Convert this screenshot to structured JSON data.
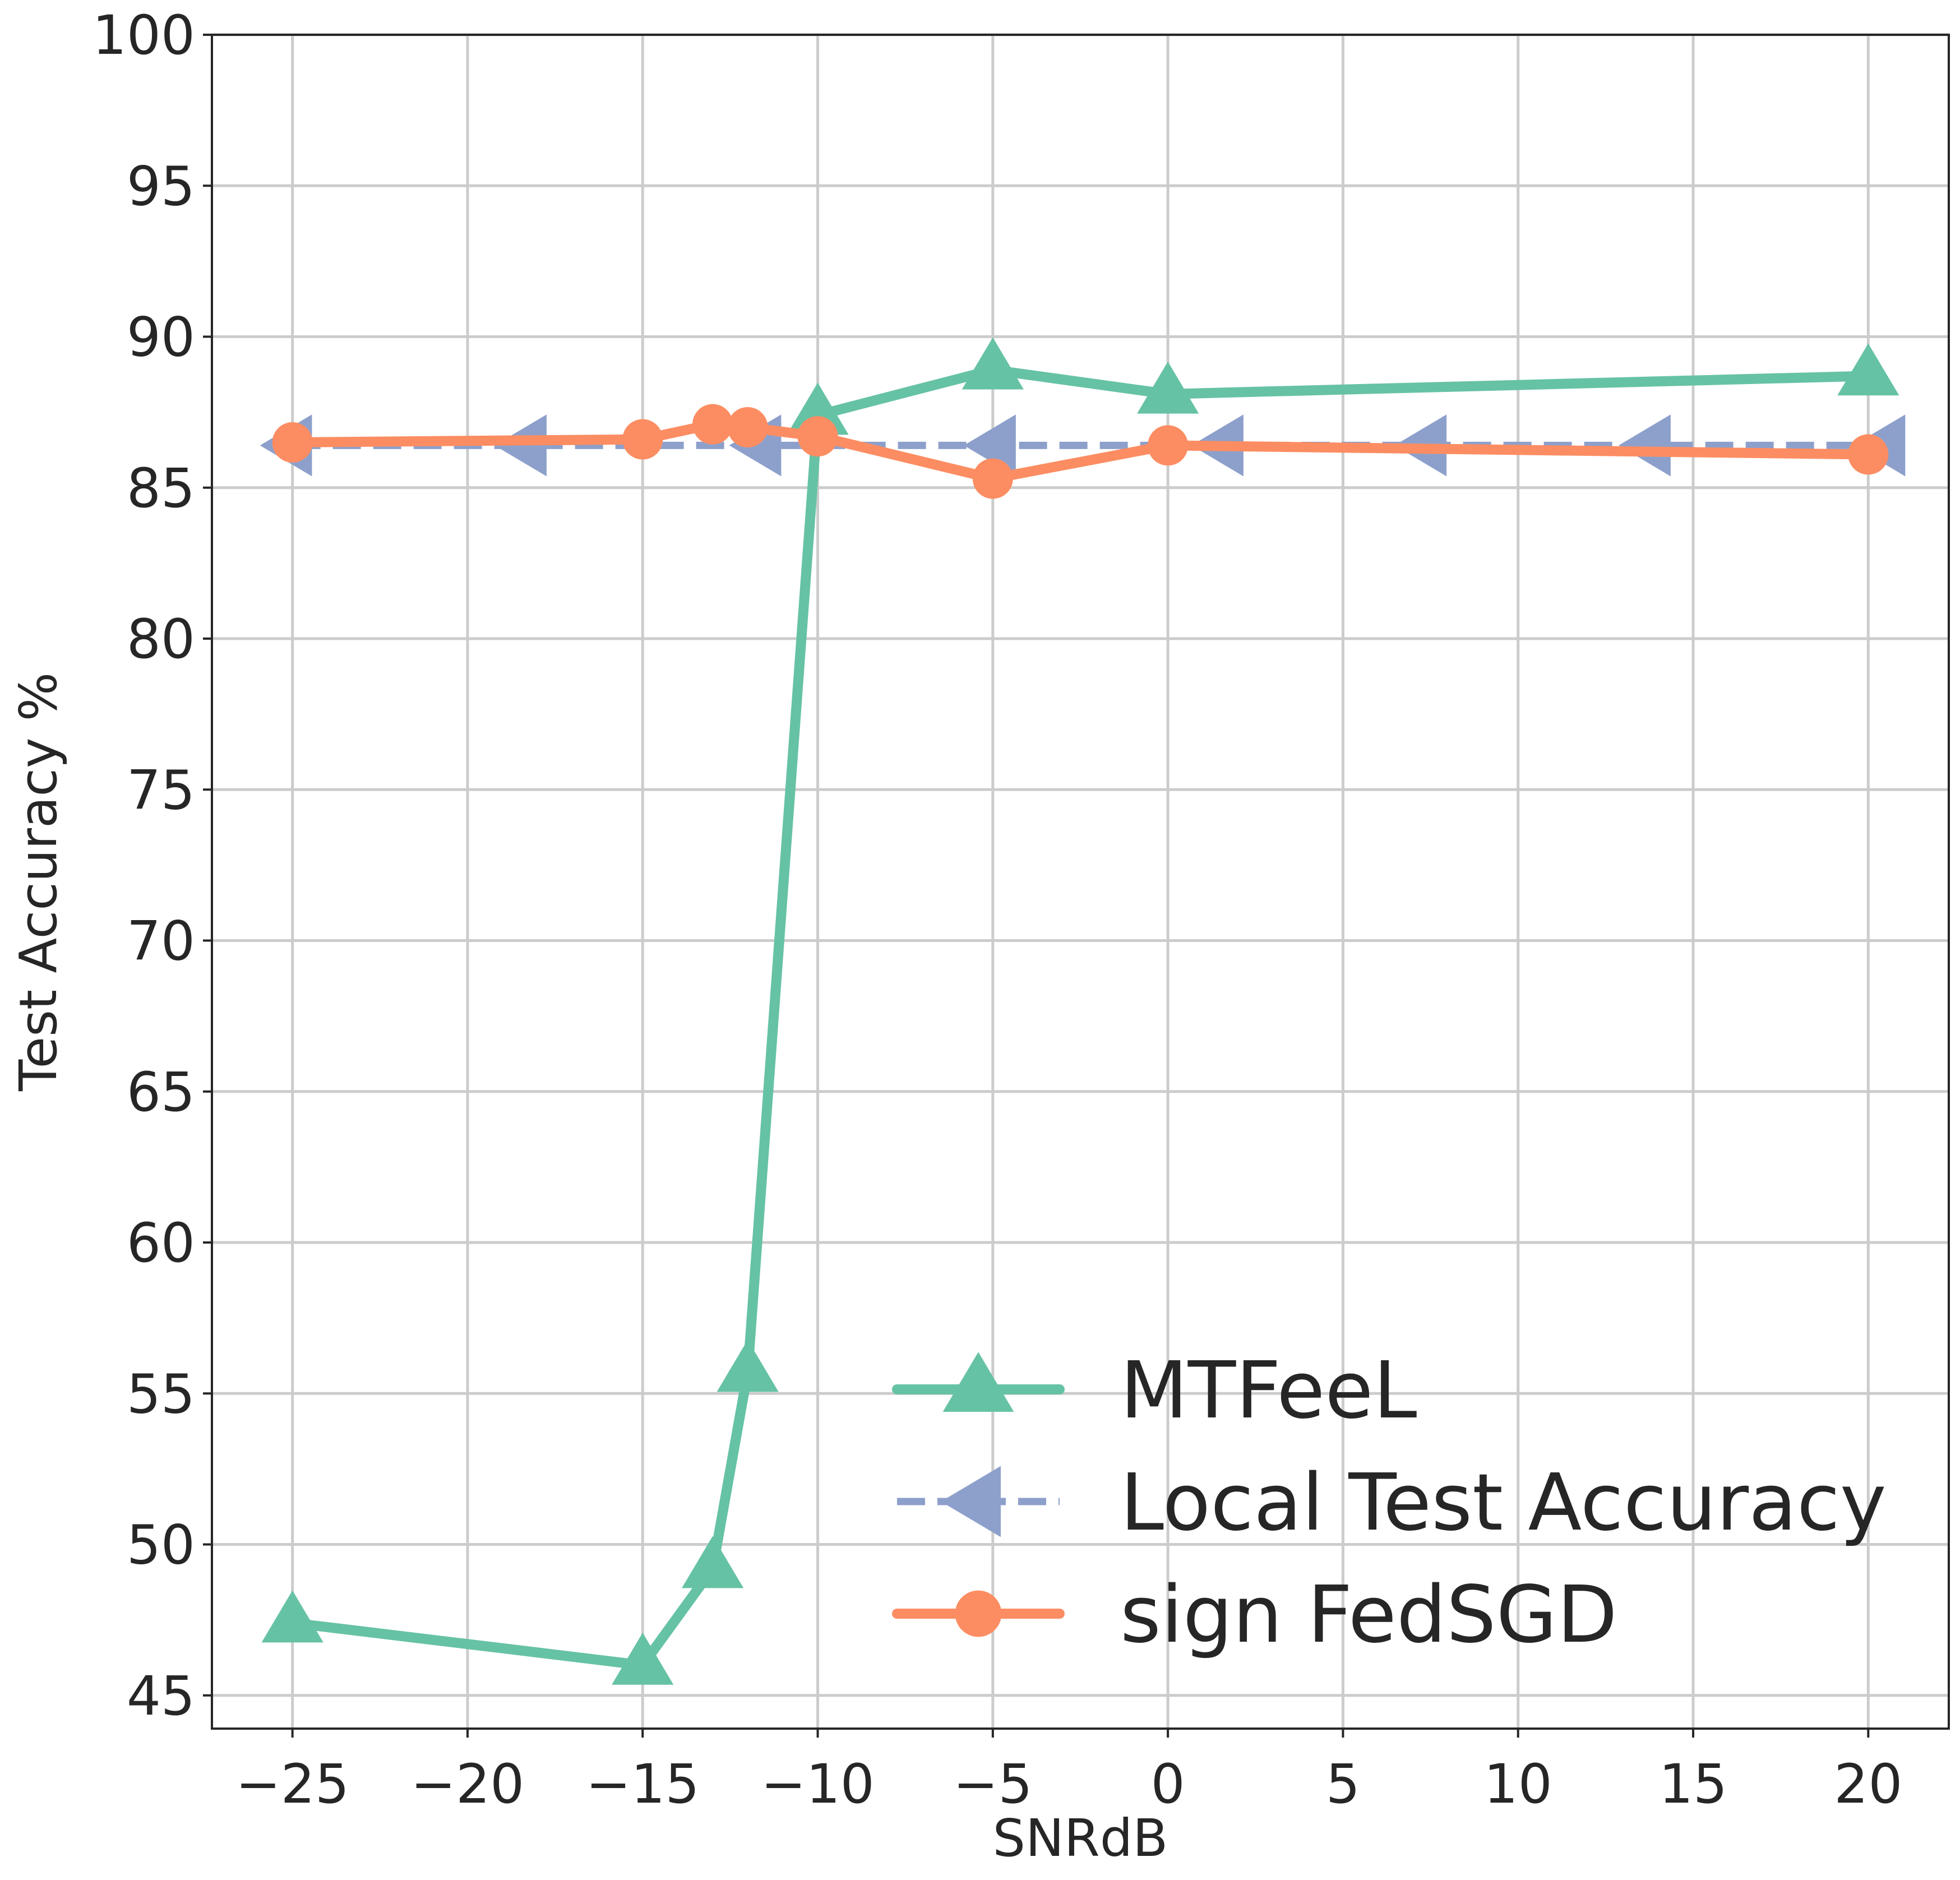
{
  "chart_data": {
    "type": "line",
    "xlabel": "SNRdB",
    "ylabel": "Test Accuracy %",
    "xlim": [
      -27.3,
      22.3
    ],
    "ylim": [
      43.9,
      100
    ],
    "xticks": [
      -25,
      -20,
      -15,
      -10,
      -5,
      0,
      5,
      10,
      15,
      20
    ],
    "xtick_labels": [
      "−25",
      "−20",
      "−15",
      "−10",
      "−5",
      "0",
      "5",
      "10",
      "15",
      "20"
    ],
    "yticks": [
      45,
      50,
      55,
      60,
      65,
      70,
      75,
      80,
      85,
      90,
      95,
      100
    ],
    "ytick_labels": [
      "45",
      "50",
      "55",
      "60",
      "65",
      "70",
      "75",
      "80",
      "85",
      "90",
      "95",
      "100"
    ],
    "grid": true,
    "legend_position": "lower-right",
    "series": [
      {
        "name": "MTFeeL",
        "color": "#66c2a5",
        "marker": "triangle-up",
        "linestyle": "solid",
        "x": [
          -25,
          -15,
          -13,
          -12,
          -10,
          -5,
          0,
          20
        ],
        "y": [
          47.4,
          46.0,
          49.2,
          55.7,
          87.4,
          88.9,
          88.1,
          88.7
        ]
      },
      {
        "name": "Local Test Accuracy",
        "color": "#8da0cb",
        "marker": "triangle-left",
        "linestyle": "dashed",
        "x": [
          -25,
          -18.3,
          -11.6,
          -4.9,
          1.6,
          7.4,
          13.8,
          20.5
        ],
        "y": [
          86.4,
          86.4,
          86.4,
          86.4,
          86.4,
          86.4,
          86.4,
          86.4
        ]
      },
      {
        "name": "sign FedSGD",
        "color": "#fc8d62",
        "marker": "circle",
        "linestyle": "solid",
        "x": [
          -25,
          -15,
          -13,
          -12,
          -10,
          -5,
          0,
          20
        ],
        "y": [
          86.5,
          86.6,
          87.1,
          87.0,
          86.7,
          85.3,
          86.4,
          86.1
        ]
      }
    ]
  }
}
